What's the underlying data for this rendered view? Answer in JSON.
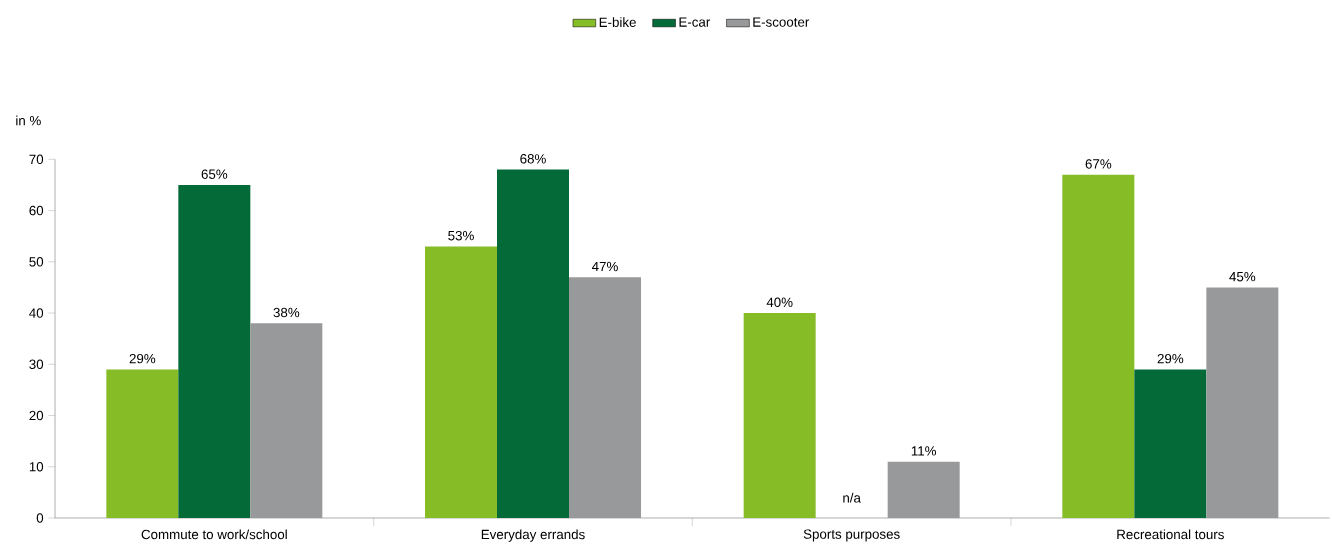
{
  "chart_data": {
    "type": "bar",
    "ylabel": "in %",
    "categories": [
      "Commute to work/school",
      "Everyday errands",
      "Sports purposes",
      "Recreational tours"
    ],
    "series": [
      {
        "name": "E-bike",
        "color": "#86bc25",
        "values": [
          29,
          53,
          40,
          67
        ],
        "value_labels": [
          "29%",
          "53%",
          "40%",
          "67%"
        ]
      },
      {
        "name": "E-car",
        "color": "#046a38",
        "values": [
          65,
          68,
          null,
          29
        ],
        "value_labels": [
          "65%",
          "68%",
          "n/a",
          "29%"
        ]
      },
      {
        "name": "E-scooter",
        "color": "#97999b",
        "values": [
          38,
          47,
          11,
          45
        ],
        "value_labels": [
          "38%",
          "47%",
          "11%",
          "45%"
        ]
      }
    ],
    "ylim": [
      0,
      70
    ],
    "yticks": [
      0,
      10,
      20,
      30,
      40,
      50,
      60,
      70
    ],
    "legend": "top",
    "grid": false
  }
}
